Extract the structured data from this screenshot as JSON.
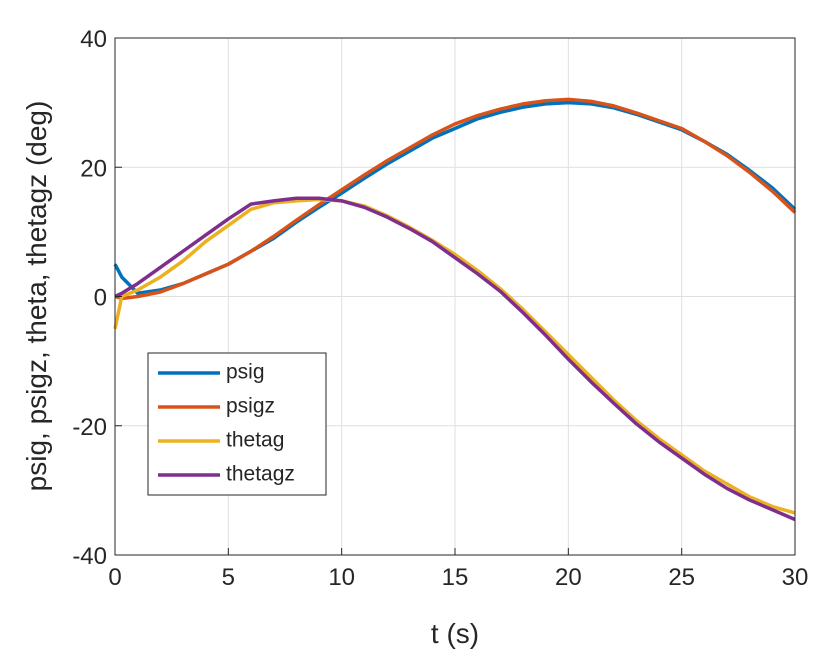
{
  "chart_data": {
    "type": "line",
    "x_label": "t (s)",
    "y_label": "psig, psigz, theta, thetagz (deg)",
    "x": [
      0,
      0.3,
      1,
      2,
      3,
      4,
      5,
      6,
      7,
      8,
      9,
      10,
      11,
      12,
      13,
      14,
      15,
      16,
      17,
      18,
      19,
      20,
      21,
      22,
      23,
      24,
      25,
      26,
      27,
      28,
      29,
      30
    ],
    "series": [
      {
        "name": "psig",
        "color": "#0072BD",
        "values": [
          5,
          3,
          0.5,
          1,
          2,
          3.5,
          5,
          7,
          9,
          11.5,
          13.8,
          16,
          18.3,
          20.5,
          22.5,
          24.5,
          26,
          27.5,
          28.5,
          29.3,
          29.8,
          30,
          29.8,
          29.2,
          28.2,
          27,
          25.8,
          24,
          22,
          19.5,
          16.8,
          13.5
        ]
      },
      {
        "name": "psigz",
        "color": "#D95319",
        "values": [
          0,
          -0.3,
          0,
          0.7,
          2,
          3.5,
          5,
          7,
          9.3,
          11.8,
          14.2,
          16.5,
          18.8,
          21,
          23,
          25,
          26.7,
          28,
          29,
          29.8,
          30.3,
          30.5,
          30.2,
          29.5,
          28.4,
          27.2,
          26,
          24,
          21.8,
          19.2,
          16.3,
          13
        ]
      },
      {
        "name": "thetag",
        "color": "#EDB120",
        "values": [
          -5,
          0,
          1,
          3,
          5.5,
          8.5,
          11,
          13.5,
          14.5,
          14.8,
          15,
          14.8,
          14,
          12.5,
          10.7,
          8.7,
          6.5,
          4,
          1.2,
          -2,
          -5.5,
          -9,
          -12.5,
          -16,
          -19.2,
          -22,
          -24.5,
          -27,
          -29,
          -31,
          -32.5,
          -33.5
        ]
      },
      {
        "name": "thetagz",
        "color": "#7E2F8E",
        "values": [
          0,
          0.5,
          2,
          4.5,
          7,
          9.5,
          12,
          14.3,
          14.8,
          15.2,
          15.2,
          14.8,
          13.8,
          12.3,
          10.5,
          8.5,
          6,
          3.5,
          0.8,
          -2.5,
          -6,
          -9.7,
          -13.2,
          -16.5,
          -19.7,
          -22.5,
          -25,
          -27.5,
          -29.7,
          -31.5,
          -33,
          -34.5
        ]
      }
    ],
    "xlim": [
      0,
      30
    ],
    "xticks": [
      0,
      5,
      10,
      15,
      20,
      25,
      30
    ],
    "ylim": [
      -40,
      40
    ],
    "yticks": [
      -40,
      -20,
      0,
      20,
      40
    ],
    "grid": true
  }
}
